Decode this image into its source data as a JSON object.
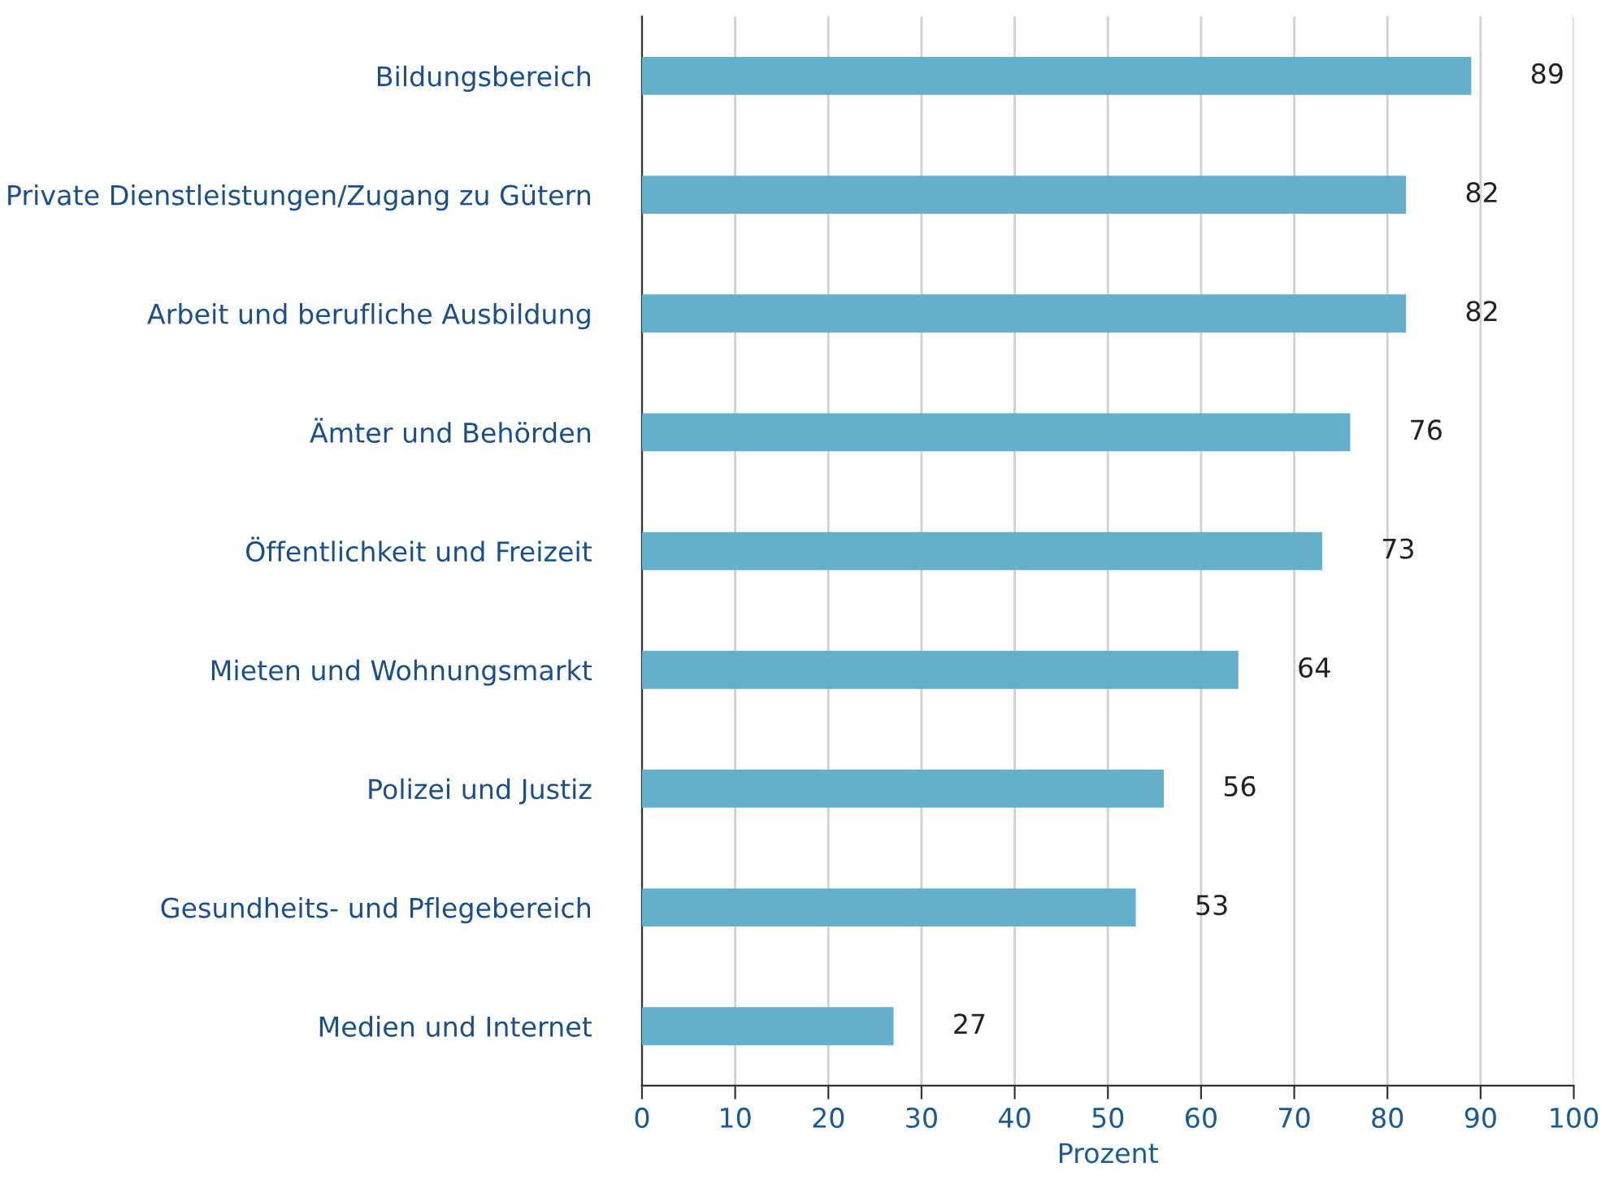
{
  "chart_data": {
    "type": "bar",
    "orientation": "horizontal",
    "xlabel": "Prozent",
    "categories": [
      "Bildungsbereich",
      "Private Dienstleistungen/Zugang zu Gütern",
      "Arbeit und berufliche Ausbildung",
      "Ämter und Behörden",
      "Öffentlichkeit und Freizeit",
      "Mieten und Wohnungsmarkt",
      "Polizei und Justiz",
      "Gesundheits- und Pflegebereich",
      "Medien und Internet"
    ],
    "values": [
      89,
      82,
      82,
      76,
      73,
      64,
      56,
      53,
      27
    ],
    "color": "#64b0cb",
    "xlim": [
      0,
      100
    ],
    "xticks": [
      0,
      10,
      20,
      30,
      40,
      50,
      60,
      70,
      80,
      90,
      100
    ],
    "grid": "x",
    "data_labels": true
  }
}
